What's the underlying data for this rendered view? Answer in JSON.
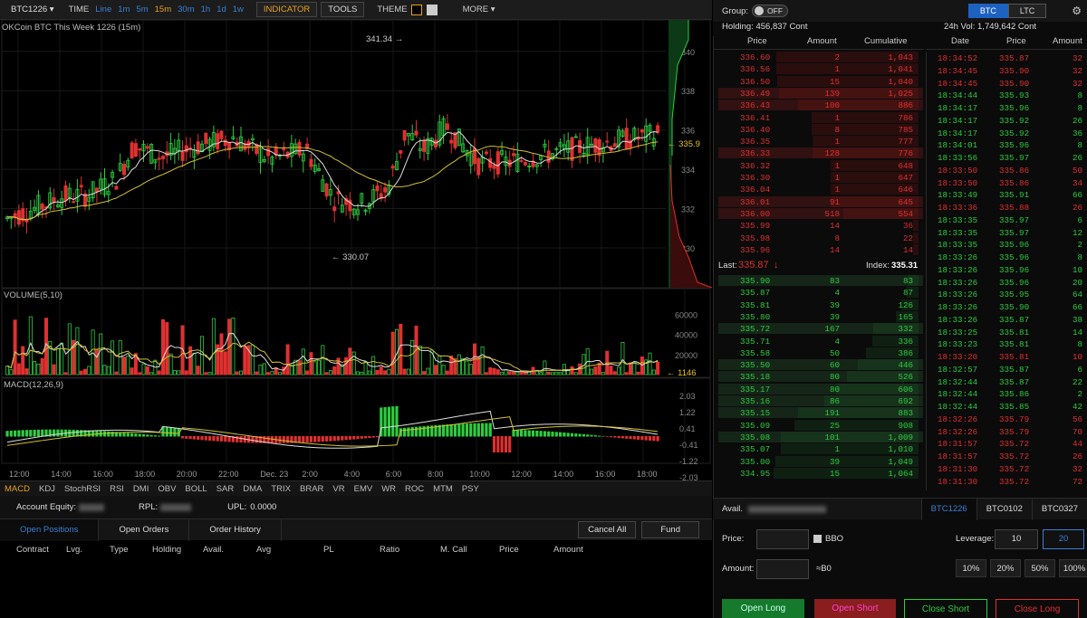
{
  "toolbar": {
    "symbol": "BTC1226",
    "time_label": "TIME",
    "periods": [
      "Line",
      "1m",
      "5m",
      "15m",
      "30m",
      "1h",
      "1d",
      "1w"
    ],
    "active_period": "15m",
    "indicator": "INDICATOR",
    "tools": "TOOLS",
    "theme": "THEME",
    "more": "MORE"
  },
  "chart": {
    "title": "OKCoin BTC This Week 1226 (15m)",
    "high_label": "341.34",
    "low_label": "330.07",
    "last_label": "335.9",
    "price_ticks": [
      "340",
      "338",
      "336",
      "334",
      "332",
      "330"
    ],
    "volume_title": "VOLUME(5,10)",
    "volume_ticks": [
      "60000",
      "40000",
      "20000"
    ],
    "volume_last": "1146",
    "macd_title": "MACD(12,26,9)",
    "macd_ticks": [
      "2.03",
      "1.22",
      "0.41",
      "-0.41",
      "-1.22",
      "-2.03"
    ],
    "time_ticks": [
      "12:00",
      "14:00",
      "16:00",
      "18:00",
      "20:00",
      "22:00",
      "Dec. 23",
      "2:00",
      "4:00",
      "6:00",
      "8:00",
      "10:00",
      "12:00",
      "14:00",
      "16:00",
      "18:00"
    ]
  },
  "indicator_tabs": [
    "MACD",
    "KDJ",
    "StochRSI",
    "RSI",
    "DMI",
    "OBV",
    "BOLL",
    "SAR",
    "DMA",
    "TRIX",
    "BRAR",
    "VR",
    "EMV",
    "WR",
    "ROC",
    "MTM",
    "PSY"
  ],
  "account": {
    "equity_label": "Account Equity:",
    "rpl_label": "RPL:",
    "upl_label": "UPL:",
    "upl_value": "0.0000"
  },
  "position_tabs": {
    "tabs": [
      "Open Positions",
      "Open Orders",
      "Order History"
    ],
    "cancel_all": "Cancel All",
    "fund": "Fund"
  },
  "position_columns": [
    "Contract",
    "Lvg.",
    "Type",
    "Holding",
    "Avail.",
    "Avg",
    "PL",
    "Ratio",
    "M. Call",
    "Price",
    "Amount"
  ],
  "right": {
    "group_label": "Group:",
    "toggle": "OFF",
    "coins": [
      "BTC",
      "LTC"
    ],
    "holding": "Holding: 456,837 Cont",
    "vol24": "24h Vol: 1,749,642 Cont",
    "ob_cols": [
      "Price",
      "Amount",
      "Cumulative"
    ],
    "trade_cols": [
      "Date",
      "Price",
      "Amount"
    ],
    "last_label": "Last:",
    "last_value": "335.87",
    "index_label": "Index:",
    "index_value": "335.31",
    "asks": [
      [
        "336.60",
        "2",
        "1,043"
      ],
      [
        "336.56",
        "1",
        "1,041"
      ],
      [
        "336.50",
        "15",
        "1,040"
      ],
      [
        "336.49",
        "139",
        "1,025"
      ],
      [
        "336.43",
        "100",
        "886"
      ],
      [
        "336.41",
        "1",
        "786"
      ],
      [
        "336.40",
        "8",
        "785"
      ],
      [
        "336.35",
        "1",
        "777"
      ],
      [
        "336.33",
        "128",
        "776"
      ],
      [
        "336.32",
        "1",
        "648"
      ],
      [
        "336.30",
        "1",
        "647"
      ],
      [
        "336.04",
        "1",
        "646"
      ],
      [
        "336.01",
        "91",
        "645"
      ],
      [
        "336.00",
        "518",
        "554"
      ],
      [
        "335.99",
        "14",
        "36"
      ],
      [
        "335.98",
        "8",
        "22"
      ],
      [
        "335.96",
        "14",
        "14"
      ]
    ],
    "bids": [
      [
        "335.90",
        "83",
        "83"
      ],
      [
        "335.87",
        "4",
        "87"
      ],
      [
        "335.81",
        "39",
        "126"
      ],
      [
        "335.80",
        "39",
        "165"
      ],
      [
        "335.72",
        "167",
        "332"
      ],
      [
        "335.71",
        "4",
        "336"
      ],
      [
        "335.58",
        "50",
        "386"
      ],
      [
        "335.50",
        "60",
        "446"
      ],
      [
        "335.18",
        "80",
        "526"
      ],
      [
        "335.17",
        "80",
        "606"
      ],
      [
        "335.16",
        "86",
        "692"
      ],
      [
        "335.15",
        "191",
        "883"
      ],
      [
        "335.09",
        "25",
        "908"
      ],
      [
        "335.08",
        "101",
        "1,009"
      ],
      [
        "335.07",
        "1",
        "1,010"
      ],
      [
        "335.00",
        "39",
        "1,049"
      ],
      [
        "334.95",
        "15",
        "1,064"
      ]
    ],
    "trades": [
      [
        "18:34:52",
        "335.87",
        "32",
        "r"
      ],
      [
        "18:34:45",
        "335.90",
        "32",
        "r"
      ],
      [
        "18:34:45",
        "335.90",
        "32",
        "r"
      ],
      [
        "18:34:44",
        "335.93",
        "8",
        "g"
      ],
      [
        "18:34:17",
        "335.96",
        "8",
        "g"
      ],
      [
        "18:34:17",
        "335.92",
        "26",
        "g"
      ],
      [
        "18:34:17",
        "335.92",
        "36",
        "g"
      ],
      [
        "18:34:01",
        "335.96",
        "8",
        "g"
      ],
      [
        "18:33:56",
        "335.97",
        "26",
        "g"
      ],
      [
        "18:33:50",
        "335.86",
        "50",
        "r"
      ],
      [
        "18:33:50",
        "335.86",
        "34",
        "r"
      ],
      [
        "18:33:49",
        "335.91",
        "66",
        "g"
      ],
      [
        "18:33:36",
        "335.88",
        "26",
        "r"
      ],
      [
        "18:33:35",
        "335.97",
        "6",
        "g"
      ],
      [
        "18:33:35",
        "335.97",
        "12",
        "g"
      ],
      [
        "18:33:35",
        "335.96",
        "2",
        "g"
      ],
      [
        "18:33:26",
        "335.96",
        "8",
        "g"
      ],
      [
        "18:33:26",
        "335.96",
        "10",
        "g"
      ],
      [
        "18:33:26",
        "335.96",
        "20",
        "g"
      ],
      [
        "18:33:26",
        "335.95",
        "64",
        "g"
      ],
      [
        "18:33:26",
        "335.90",
        "66",
        "g"
      ],
      [
        "18:33:26",
        "335.87",
        "38",
        "g"
      ],
      [
        "18:33:25",
        "335.81",
        "14",
        "g"
      ],
      [
        "18:33:23",
        "335.81",
        "8",
        "g"
      ],
      [
        "18:33:20",
        "335.81",
        "10",
        "r"
      ],
      [
        "18:32:57",
        "335.87",
        "6",
        "g"
      ],
      [
        "18:32:44",
        "335.87",
        "22",
        "g"
      ],
      [
        "18:32:44",
        "335.86",
        "2",
        "g"
      ],
      [
        "18:32:44",
        "335.85",
        "42",
        "g"
      ],
      [
        "18:32:26",
        "335.79",
        "56",
        "r"
      ],
      [
        "18:32:26",
        "335.79",
        "70",
        "r"
      ],
      [
        "18:31:57",
        "335.72",
        "44",
        "r"
      ],
      [
        "18:31:57",
        "335.72",
        "26",
        "r"
      ],
      [
        "18:31:30",
        "335.72",
        "32",
        "r"
      ],
      [
        "18:31:30",
        "335.72",
        "72",
        "r"
      ]
    ],
    "contract_tabs": [
      "BTC1226",
      "BTC0102",
      "BTC0327"
    ],
    "avail_label": "Avail.",
    "price_label": "Price:",
    "bbo": "BBO",
    "leverage_label": "Leverage:",
    "leverage_options": [
      "10",
      "20"
    ],
    "amount_label": "Amount:",
    "approx": "≈B0",
    "pcts": [
      "10%",
      "20%",
      "50%",
      "100%"
    ],
    "actions": [
      "Open Long",
      "Open Short",
      "Close Short",
      "Close Long"
    ]
  }
}
